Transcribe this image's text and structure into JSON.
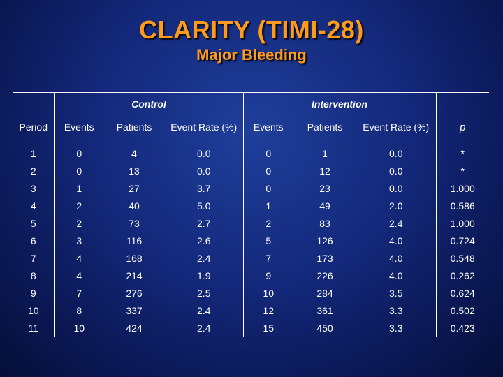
{
  "title": "CLARITY (TIMI-28)",
  "subtitle": "Major Bleeding",
  "groups": {
    "control": "Control",
    "intervention": "Intervention"
  },
  "headers": [
    "Period",
    "Events",
    "Patients",
    "Event Rate (%)",
    "Events",
    "Patients",
    "Event Rate (%)",
    "p"
  ],
  "rows": [
    [
      "1",
      "0",
      "4",
      "0.0",
      "0",
      "1",
      "0.0",
      "*"
    ],
    [
      "2",
      "0",
      "13",
      "0.0",
      "0",
      "12",
      "0.0",
      "*"
    ],
    [
      "3",
      "1",
      "27",
      "3.7",
      "0",
      "23",
      "0.0",
      "1.000"
    ],
    [
      "4",
      "2",
      "40",
      "5.0",
      "1",
      "49",
      "2.0",
      "0.586"
    ],
    [
      "5",
      "2",
      "73",
      "2.7",
      "2",
      "83",
      "2.4",
      "1.000"
    ],
    [
      "6",
      "3",
      "116",
      "2.6",
      "5",
      "126",
      "4.0",
      "0.724"
    ],
    [
      "7",
      "4",
      "168",
      "2.4",
      "7",
      "173",
      "4.0",
      "0.548"
    ],
    [
      "8",
      "4",
      "214",
      "1.9",
      "9",
      "226",
      "4.0",
      "0.262"
    ],
    [
      "9",
      "7",
      "276",
      "2.5",
      "10",
      "284",
      "3.5",
      "0.624"
    ],
    [
      "10",
      "8",
      "337",
      "2.4",
      "12",
      "361",
      "3.3",
      "0.502"
    ],
    [
      "11",
      "10",
      "424",
      "2.4",
      "15",
      "450",
      "3.3",
      "0.423"
    ]
  ],
  "colors": {
    "background": "#13287a",
    "title": "#ff9a1a",
    "text": "#ffffff",
    "rules": "#ffffff"
  }
}
